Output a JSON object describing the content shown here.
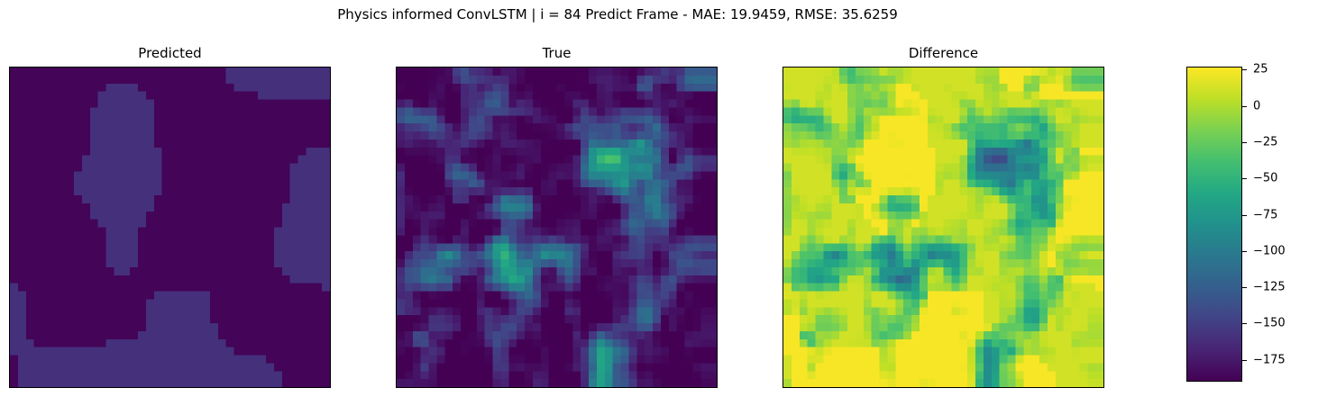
{
  "figure": {
    "suptitle": "Physics informed ConvLSTM | i = 84 Predict Frame - MAE: 19.9459, RMSE: 35.6259"
  },
  "chart_data": [
    {
      "type": "heatmap",
      "title": "Predicted",
      "grid_size": [
        40,
        40
      ],
      "colormap": "viridis",
      "description_levels": "two-level field: background ~-190, lighter region ~-160",
      "value_range": [
        -190,
        -155
      ]
    },
    {
      "type": "heatmap",
      "title": "True",
      "grid_size": [
        40,
        40
      ],
      "colormap": "viridis",
      "value_range": [
        -190,
        25
      ]
    },
    {
      "type": "heatmap",
      "title": "Difference",
      "grid_size": [
        40,
        40
      ],
      "colormap": "viridis",
      "value_range": [
        -190,
        25
      ]
    }
  ],
  "colorbar": {
    "colormap": "viridis",
    "vmin": -190,
    "vmax": 27,
    "ticks": [
      {
        "value": 25,
        "label": "25"
      },
      {
        "value": 0,
        "label": "0"
      },
      {
        "value": -25,
        "label": "−25"
      },
      {
        "value": -50,
        "label": "−50"
      },
      {
        "value": -75,
        "label": "−75"
      },
      {
        "value": -100,
        "label": "−100"
      },
      {
        "value": -125,
        "label": "−125"
      },
      {
        "value": -150,
        "label": "−150"
      },
      {
        "value": -175,
        "label": "−175"
      }
    ]
  }
}
